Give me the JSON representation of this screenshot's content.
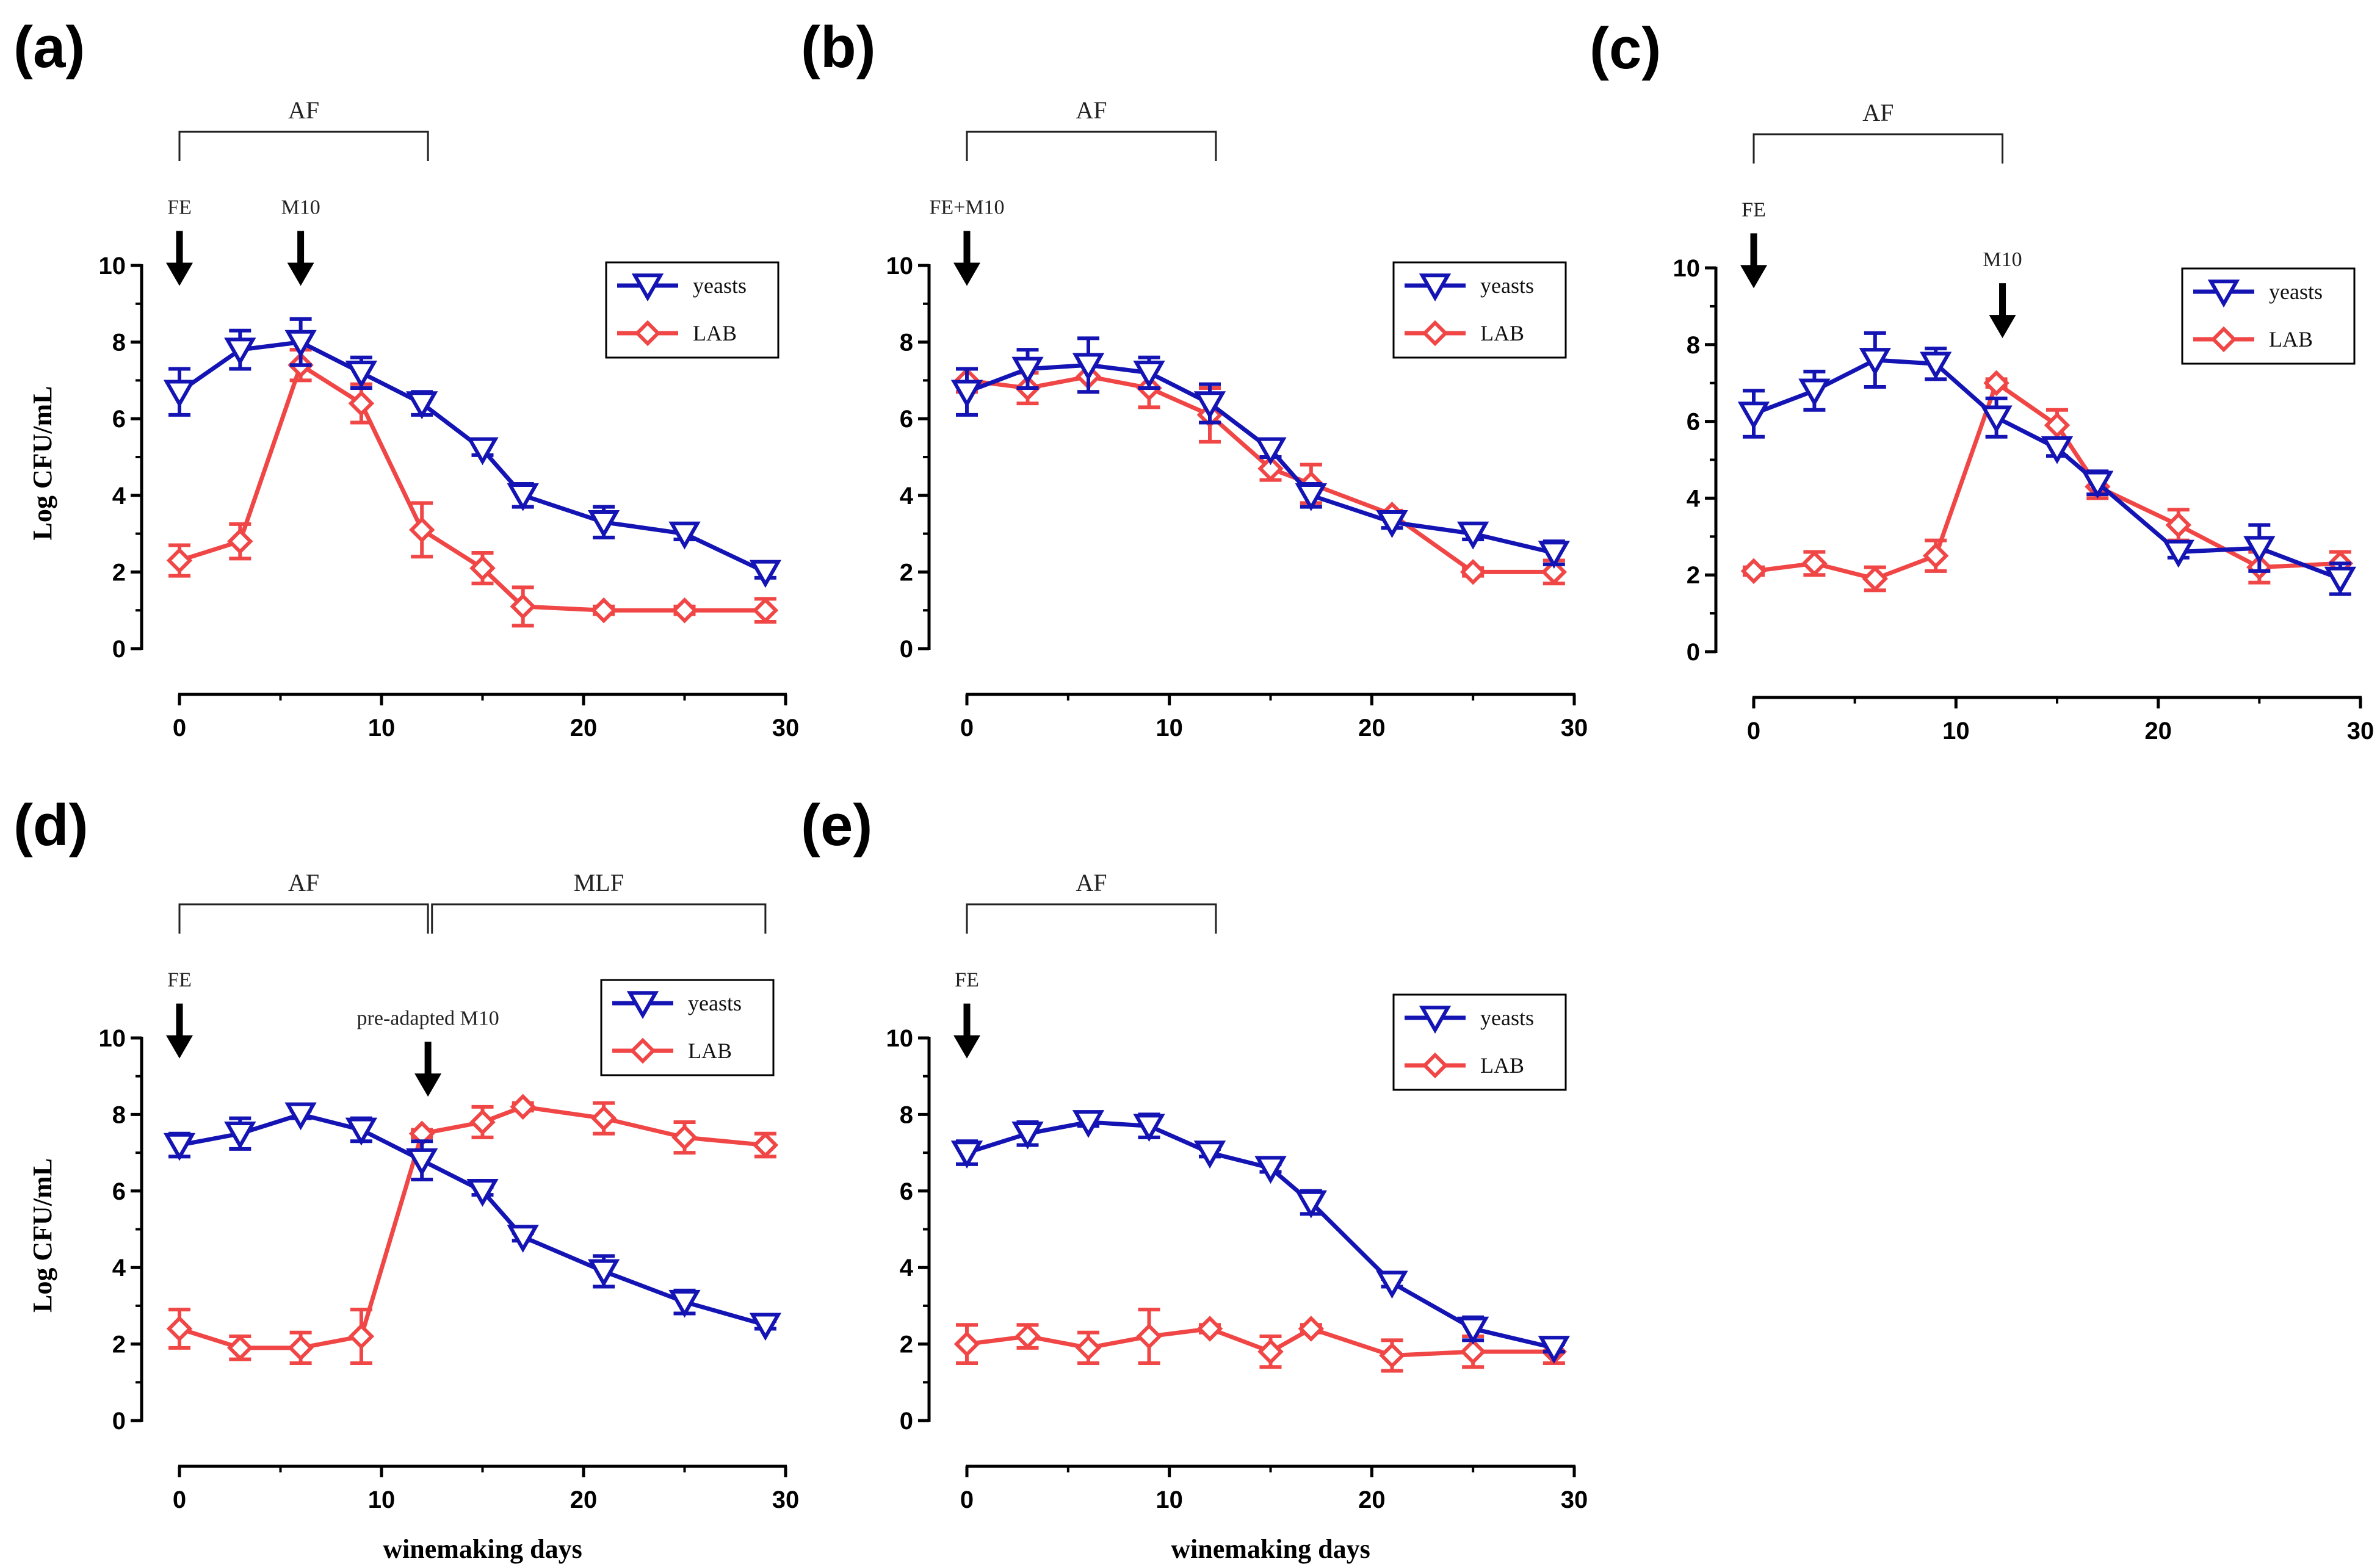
{
  "figure": {
    "x_title": "winemaking days",
    "y_title": "Log CFU/mL"
  },
  "legend": {
    "yeasts_label": "yeasts",
    "lab_label": "LAB"
  },
  "colors": {
    "yeasts": "#1414b4",
    "lab": "#f04646"
  },
  "panels": [
    {
      "id": "a",
      "label": "(a)",
      "phases": [
        {
          "label": "AF",
          "from": 0,
          "to": 12.3
        }
      ],
      "annotations": [
        {
          "text": "FE",
          "x": 0,
          "arrow_top": 10.9
        },
        {
          "text": "M10",
          "x": 6,
          "arrow_top": 10.9
        }
      ]
    },
    {
      "id": "b",
      "label": "(b)",
      "phases": [
        {
          "label": "AF",
          "from": 0,
          "to": 12.3
        }
      ],
      "annotations": [
        {
          "text": "FE+M10",
          "x": 0,
          "arrow_top": 10.9
        }
      ]
    },
    {
      "id": "c",
      "label": "(c)",
      "phases": [
        {
          "label": "AF",
          "from": 0,
          "to": 12.3
        }
      ],
      "annotations": [
        {
          "text": "FE",
          "x": 0,
          "arrow_top": 10.9
        },
        {
          "text": "M10",
          "x": 12.3,
          "arrow_top": 9.6
        }
      ]
    },
    {
      "id": "d",
      "label": "(d)",
      "phases": [
        {
          "label": "AF",
          "from": 0,
          "to": 12.3
        },
        {
          "label": "MLF",
          "from": 12.5,
          "to": 29
        }
      ],
      "annotations": [
        {
          "text": "FE",
          "x": 0,
          "arrow_top": 10.9
        },
        {
          "text": "pre-adapted M10",
          "x": 12.3,
          "arrow_top": 9.9
        }
      ]
    },
    {
      "id": "e",
      "label": "(e)",
      "phases": [
        {
          "label": "AF",
          "from": 0,
          "to": 12.3
        }
      ],
      "annotations": [
        {
          "text": "FE",
          "x": 0,
          "arrow_top": 10.9
        }
      ]
    }
  ],
  "chart_data": [
    {
      "type": "line",
      "panel": "a",
      "title": "(a)",
      "xlabel": "",
      "ylabel": "Log CFU/mL",
      "xlim": [
        0,
        30
      ],
      "ylim": [
        0,
        10
      ],
      "xticks": [
        0,
        10,
        20,
        30
      ],
      "yticks": [
        0,
        2,
        4,
        6,
        8,
        10
      ],
      "grid": false,
      "legend": "top-right",
      "series": [
        {
          "name": "yeasts",
          "marker": "triangle-down",
          "x": [
            0,
            3,
            6,
            9,
            12,
            15,
            17,
            21,
            25,
            29
          ],
          "y": [
            6.7,
            7.8,
            8.0,
            7.2,
            6.4,
            5.2,
            4.0,
            3.3,
            3.0,
            2.0
          ],
          "err": [
            0.6,
            0.5,
            0.6,
            0.4,
            0.3,
            0.15,
            0.3,
            0.4,
            0.15,
            0.15
          ]
        },
        {
          "name": "LAB",
          "marker": "diamond",
          "x": [
            0,
            3,
            6,
            9,
            12,
            15,
            17,
            21,
            25,
            29
          ],
          "y": [
            2.3,
            2.8,
            7.4,
            6.4,
            3.1,
            2.1,
            1.1,
            1.0,
            1.0,
            1.0
          ],
          "err": [
            0.4,
            0.45,
            0.4,
            0.5,
            0.7,
            0.4,
            0.5,
            0.1,
            0.1,
            0.3
          ]
        }
      ]
    },
    {
      "type": "line",
      "panel": "b",
      "title": "(b)",
      "xlabel": "",
      "ylabel": "",
      "xlim": [
        0,
        30
      ],
      "ylim": [
        0,
        10
      ],
      "xticks": [
        0,
        10,
        20,
        30
      ],
      "yticks": [
        0,
        2,
        4,
        6,
        8,
        10
      ],
      "grid": false,
      "legend": "top-right",
      "series": [
        {
          "name": "yeasts",
          "marker": "triangle-down",
          "x": [
            0,
            3,
            6,
            9,
            12,
            15,
            17,
            21,
            25,
            29
          ],
          "y": [
            6.7,
            7.3,
            7.4,
            7.2,
            6.4,
            5.2,
            4.0,
            3.3,
            3.0,
            2.5
          ],
          "err": [
            0.6,
            0.5,
            0.7,
            0.4,
            0.5,
            0.2,
            0.3,
            0.15,
            0.15,
            0.3
          ]
        },
        {
          "name": "LAB",
          "marker": "diamond",
          "x": [
            0,
            3,
            6,
            9,
            12,
            15,
            17,
            21,
            25,
            29
          ],
          "y": [
            7.0,
            6.8,
            7.1,
            6.8,
            6.1,
            4.7,
            4.3,
            3.5,
            2.0,
            2.0
          ],
          "err": [
            0.3,
            0.4,
            0.4,
            0.5,
            0.7,
            0.3,
            0.5,
            0.1,
            0.1,
            0.3
          ]
        }
      ]
    },
    {
      "type": "line",
      "panel": "c",
      "title": "(c)",
      "xlabel": "",
      "ylabel": "",
      "xlim": [
        0,
        30
      ],
      "ylim": [
        0,
        10
      ],
      "xticks": [
        0,
        10,
        20,
        30
      ],
      "yticks": [
        0,
        2,
        4,
        6,
        8,
        10
      ],
      "grid": false,
      "legend": "top-right",
      "series": [
        {
          "name": "yeasts",
          "marker": "triangle-down",
          "x": [
            0,
            3,
            6,
            9,
            12,
            15,
            17,
            21,
            25,
            29
          ],
          "y": [
            6.2,
            6.8,
            7.6,
            7.5,
            6.1,
            5.3,
            4.4,
            2.6,
            2.7,
            1.9
          ],
          "err": [
            0.6,
            0.5,
            0.7,
            0.4,
            0.5,
            0.2,
            0.3,
            0.15,
            0.6,
            0.4
          ]
        },
        {
          "name": "LAB",
          "marker": "diamond",
          "x": [
            0,
            3,
            6,
            9,
            12,
            15,
            17,
            21,
            25,
            29
          ],
          "y": [
            2.1,
            2.3,
            1.9,
            2.5,
            7.0,
            5.9,
            4.3,
            3.3,
            2.2,
            2.3
          ],
          "err": [
            0.1,
            0.3,
            0.3,
            0.4,
            0.1,
            0.4,
            0.3,
            0.4,
            0.4,
            0.3
          ]
        }
      ]
    },
    {
      "type": "line",
      "panel": "d",
      "title": "(d)",
      "xlabel": "winemaking days",
      "ylabel": "Log CFU/mL",
      "xlim": [
        0,
        30
      ],
      "ylim": [
        0,
        10
      ],
      "xticks": [
        0,
        10,
        20,
        30
      ],
      "yticks": [
        0,
        2,
        4,
        6,
        8,
        10
      ],
      "grid": false,
      "legend": "top-right",
      "series": [
        {
          "name": "yeasts",
          "marker": "triangle-down",
          "x": [
            0,
            3,
            6,
            9,
            12,
            15,
            17,
            21,
            25,
            29
          ],
          "y": [
            7.2,
            7.5,
            8.0,
            7.6,
            6.8,
            6.0,
            4.8,
            3.9,
            3.1,
            2.5
          ],
          "err": [
            0.3,
            0.4,
            0.1,
            0.3,
            0.5,
            0.1,
            0.1,
            0.4,
            0.3,
            0.1
          ]
        },
        {
          "name": "LAB",
          "marker": "diamond",
          "x": [
            0,
            3,
            6,
            9,
            12,
            15,
            17,
            21,
            25,
            29
          ],
          "y": [
            2.4,
            1.9,
            1.9,
            2.2,
            7.5,
            7.8,
            8.2,
            7.9,
            7.4,
            7.2
          ],
          "err": [
            0.5,
            0.3,
            0.4,
            0.7,
            0.1,
            0.4,
            0.1,
            0.4,
            0.4,
            0.3
          ]
        }
      ]
    },
    {
      "type": "line",
      "panel": "e",
      "title": "(e)",
      "xlabel": "winemaking days",
      "ylabel": "",
      "xlim": [
        0,
        30
      ],
      "ylim": [
        0,
        10
      ],
      "xticks": [
        0,
        10,
        20,
        30
      ],
      "yticks": [
        0,
        2,
        4,
        6,
        8,
        10
      ],
      "grid": false,
      "legend": "top-right",
      "series": [
        {
          "name": "yeasts",
          "marker": "triangle-down",
          "x": [
            0,
            3,
            6,
            9,
            12,
            15,
            17,
            21,
            25,
            29
          ],
          "y": [
            7.0,
            7.5,
            7.8,
            7.7,
            7.0,
            6.6,
            5.7,
            3.6,
            2.4,
            1.9
          ],
          "err": [
            0.3,
            0.3,
            0.1,
            0.3,
            0.1,
            0.1,
            0.3,
            0.1,
            0.3,
            0.1
          ]
        },
        {
          "name": "LAB",
          "marker": "diamond",
          "x": [
            0,
            3,
            6,
            9,
            12,
            15,
            17,
            21,
            25,
            29
          ],
          "y": [
            2.0,
            2.2,
            1.9,
            2.2,
            2.4,
            1.8,
            2.4,
            1.7,
            1.8,
            1.8
          ],
          "err": [
            0.5,
            0.3,
            0.4,
            0.7,
            0.1,
            0.4,
            0.1,
            0.4,
            0.4,
            0.3
          ]
        }
      ]
    }
  ]
}
